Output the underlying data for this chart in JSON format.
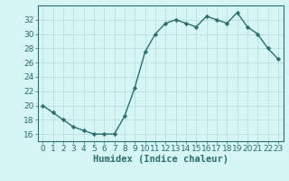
{
  "x": [
    0,
    1,
    2,
    3,
    4,
    5,
    6,
    7,
    8,
    9,
    10,
    11,
    12,
    13,
    14,
    15,
    16,
    17,
    18,
    19,
    20,
    21,
    22,
    23
  ],
  "y": [
    20,
    19,
    18,
    17,
    16.5,
    16,
    16,
    16,
    18.5,
    22.5,
    27.5,
    30,
    31.5,
    32,
    31.5,
    31,
    32.5,
    32,
    31.5,
    33,
    31,
    30,
    28,
    26.5
  ],
  "line_color": "#2d6e6e",
  "marker": "D",
  "marker_size": 2.2,
  "bg_color": "#d6f5f5",
  "grid_color": "#b8e0e0",
  "xlabel": "Humidex (Indice chaleur)",
  "xlim": [
    -0.5,
    23.5
  ],
  "ylim": [
    15,
    34
  ],
  "yticks": [
    16,
    18,
    20,
    22,
    24,
    26,
    28,
    30,
    32
  ],
  "xticks": [
    0,
    1,
    2,
    3,
    4,
    5,
    6,
    7,
    8,
    9,
    10,
    11,
    12,
    13,
    14,
    15,
    16,
    17,
    18,
    19,
    20,
    21,
    22,
    23
  ],
  "xlabel_fontsize": 7.5,
  "tick_fontsize": 6.5,
  "line_width": 1.0
}
